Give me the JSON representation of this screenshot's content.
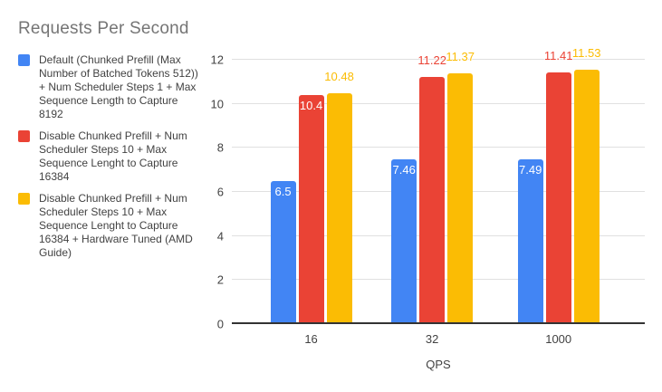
{
  "chart_data": {
    "type": "bar",
    "title": "Requests Per Second",
    "xlabel": "QPS",
    "ylabel": "",
    "categories": [
      "16",
      "32",
      "1000"
    ],
    "series": [
      {
        "name": "Default (Chunked Prefill (Max Number of Batched Tokens 512)) + Num Scheduler Steps 1 + Max Sequence Length to Capture 8192",
        "color": "#4285F4",
        "values": [
          6.5,
          7.46,
          7.49
        ]
      },
      {
        "name": "Disable Chunked Prefill + Num Scheduler Steps 10 + Max Sequence Lenght to Capture 16384",
        "color": "#EA4335",
        "values": [
          10.4,
          11.22,
          11.41
        ]
      },
      {
        "name": "Disable Chunked Prefill + Num Scheduler Steps 10 + Max Sequence Lenght to Capture 16384 + Hardware Tuned (AMD Guide)",
        "color": "#FBBC04",
        "values": [
          10.48,
          11.37,
          11.53
        ]
      }
    ],
    "ylim": [
      0,
      12
    ],
    "yticks": [
      0,
      2,
      4,
      6,
      8,
      10,
      12
    ],
    "grid": true,
    "legend_position": "left",
    "colors": {
      "title_text": "#757575",
      "axis_text": "#424242",
      "gridline": "#e0e0e0",
      "baseline": "#333333",
      "inside_label_text": "#ffffff",
      "background": "#ffffff"
    }
  }
}
